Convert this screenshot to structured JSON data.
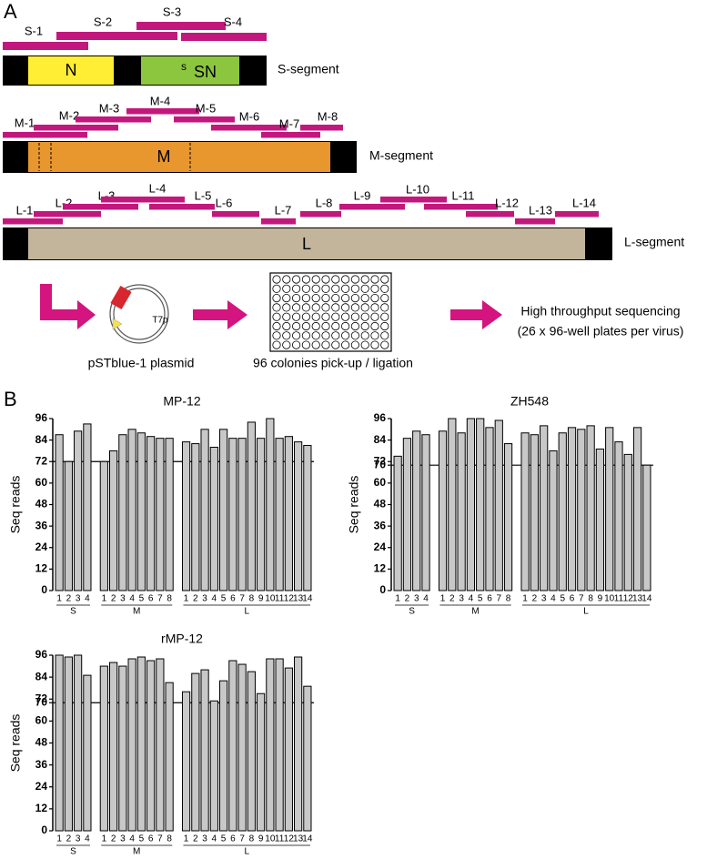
{
  "panel_a": {
    "label": "A",
    "segments": [
      {
        "name": "S-segment",
        "amplicons": [
          "S-1",
          "S-2",
          "S-3",
          "S-4"
        ],
        "genes": [
          "N",
          "SN"
        ],
        "gene_superscript": "s"
      },
      {
        "name": "M-segment",
        "amplicons": [
          "M-1",
          "M-2",
          "M-3",
          "M-4",
          "M-5",
          "M-6",
          "M-7",
          "M-8"
        ],
        "genes": [
          "M"
        ]
      },
      {
        "name": "L-segment",
        "amplicons": [
          "L-1",
          "L-2",
          "L-3",
          "L-4",
          "L-5",
          "L-6",
          "L-7",
          "L-8",
          "L-9",
          "L-10",
          "L-11",
          "L-12",
          "L-13",
          "L-14"
        ],
        "genes": [
          "L"
        ]
      }
    ],
    "workflow": {
      "promoter": "T7p",
      "plasmid_label": "pSTblue-1 plasmid",
      "plate_label": "96 colonies pick-up / ligation",
      "sequencing": [
        "High throughput sequencing",
        "(26 x 96-well plates per virus)"
      ]
    }
  },
  "panel_b": {
    "label": "B"
  },
  "chart_data": [
    {
      "type": "bar",
      "title": "MP-12",
      "ylabel": "Seq reads",
      "ylim": [
        0,
        96
      ],
      "yticks": [
        0,
        12,
        24,
        36,
        48,
        60,
        72,
        84,
        96
      ],
      "reference_line": 72,
      "color": "#c8c8c8",
      "groups": [
        {
          "label": "S",
          "categories": [
            "1",
            "2",
            "3",
            "4"
          ],
          "values": [
            87,
            72,
            89,
            93
          ]
        },
        {
          "label": "M",
          "categories": [
            "1",
            "2",
            "3",
            "4",
            "5",
            "6",
            "7",
            "8"
          ],
          "values": [
            72,
            78,
            87,
            90,
            88,
            86,
            85,
            85
          ]
        },
        {
          "label": "L",
          "categories": [
            "1",
            "2",
            "3",
            "4",
            "5",
            "6",
            "7",
            "8",
            "9",
            "10",
            "11",
            "12",
            "13",
            "14"
          ],
          "values": [
            83,
            82,
            90,
            80,
            90,
            85,
            85,
            94,
            85,
            96,
            85,
            86,
            83,
            81
          ]
        }
      ]
    },
    {
      "type": "bar",
      "title": "ZH548",
      "ylabel": "Seq reads",
      "ylim": [
        0,
        96
      ],
      "yticks": [
        0,
        12,
        24,
        36,
        48,
        60,
        70,
        72,
        84,
        96
      ],
      "reference_line": 70,
      "color": "#c8c8c8",
      "groups": [
        {
          "label": "S",
          "categories": [
            "1",
            "2",
            "3",
            "4"
          ],
          "values": [
            75,
            85,
            89,
            87
          ]
        },
        {
          "label": "M",
          "categories": [
            "1",
            "2",
            "3",
            "4",
            "5",
            "6",
            "7",
            "8"
          ],
          "values": [
            89,
            96,
            88,
            96,
            96,
            91,
            95,
            82
          ]
        },
        {
          "label": "L",
          "categories": [
            "1",
            "2",
            "3",
            "4",
            "5",
            "6",
            "7",
            "8",
            "9",
            "10",
            "11",
            "12",
            "13",
            "14"
          ],
          "values": [
            88,
            87,
            92,
            78,
            88,
            91,
            90,
            92,
            79,
            91,
            83,
            76,
            91,
            70
          ]
        }
      ]
    },
    {
      "type": "bar",
      "title": "rMP-12",
      "ylabel": "Seq reads",
      "ylim": [
        0,
        96
      ],
      "yticks": [
        0,
        12,
        24,
        36,
        48,
        60,
        70,
        72,
        84,
        96
      ],
      "reference_line": 70,
      "color": "#c8c8c8",
      "groups": [
        {
          "label": "S",
          "categories": [
            "1",
            "2",
            "3",
            "4"
          ],
          "values": [
            96,
            95,
            96,
            85
          ]
        },
        {
          "label": "M",
          "categories": [
            "1",
            "2",
            "3",
            "4",
            "5",
            "6",
            "7",
            "8"
          ],
          "values": [
            90,
            92,
            90,
            94,
            95,
            93,
            94,
            81
          ]
        },
        {
          "label": "L",
          "categories": [
            "1",
            "2",
            "3",
            "4",
            "5",
            "6",
            "7",
            "8",
            "9",
            "10",
            "11",
            "12",
            "13",
            "14"
          ],
          "values": [
            76,
            86,
            88,
            71,
            82,
            93,
            91,
            87,
            75,
            94,
            94,
            89,
            95,
            79
          ]
        }
      ]
    }
  ]
}
